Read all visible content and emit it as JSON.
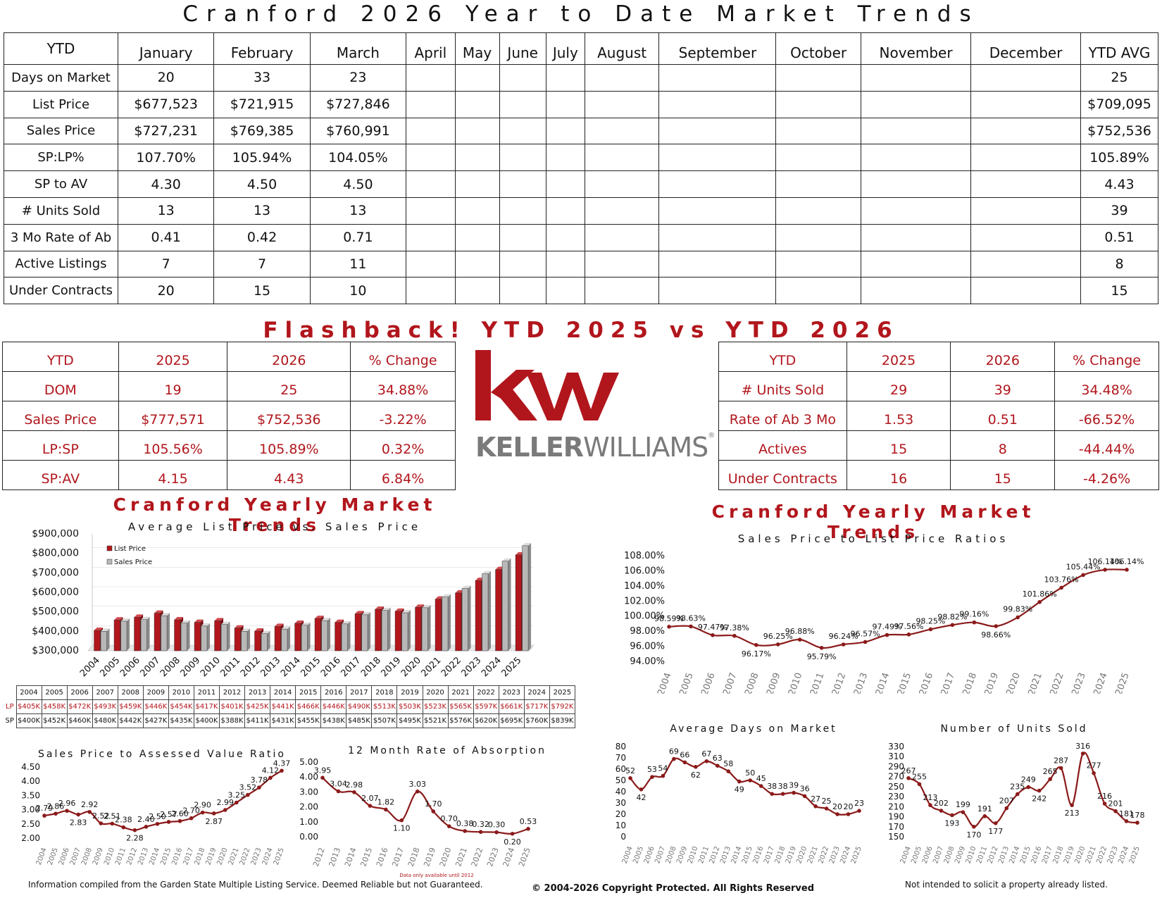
{
  "page": {
    "title": "Cranford 2026 Year to Date Market Trends",
    "flashback_title": "Flashback!  YTD 2025 vs YTD 2026",
    "yearly_title_left": "Cranford Yearly Market Trends",
    "yearly_title_right": "Cranford Yearly Market Trends"
  },
  "ytd_table": {
    "headers": [
      "YTD",
      "January",
      "February",
      "March",
      "April",
      "May",
      "June",
      "July",
      "August",
      "September",
      "October",
      "November",
      "December",
      "YTD AVG"
    ],
    "rows": [
      {
        "label": "Days on Market",
        "values": [
          "20",
          "33",
          "23"
        ],
        "avg": "25"
      },
      {
        "label": "List Price",
        "values": [
          "$677,523",
          "$721,915",
          "$727,846"
        ],
        "avg": "$709,095"
      },
      {
        "label": "Sales Price",
        "values": [
          "$727,231",
          "$769,385",
          "$760,991"
        ],
        "avg": "$752,536"
      },
      {
        "label": "SP:LP%",
        "values": [
          "107.70%",
          "105.94%",
          "104.05%"
        ],
        "avg": "105.89%"
      },
      {
        "label": "SP to AV",
        "values": [
          "4.30",
          "4.50",
          "4.50"
        ],
        "avg": "4.43"
      },
      {
        "label": "# Units Sold",
        "values": [
          "13",
          "13",
          "13"
        ],
        "avg": "39"
      },
      {
        "label": "3 Mo Rate of Ab",
        "values": [
          "0.41",
          "0.42",
          "0.71"
        ],
        "avg": "0.51"
      },
      {
        "label": "Active Listings",
        "values": [
          "7",
          "7",
          "11"
        ],
        "avg": "8"
      },
      {
        "label": "Under Contracts",
        "values": [
          "20",
          "15",
          "10"
        ],
        "avg": "15"
      }
    ]
  },
  "compare_left": {
    "headers": [
      "YTD",
      "2025",
      "2026",
      "% Change"
    ],
    "rows": [
      [
        "DOM",
        "19",
        "25",
        "34.88%"
      ],
      [
        "Sales Price",
        "$777,571",
        "$752,536",
        "-3.22%"
      ],
      [
        "LP:SP",
        "105.56%",
        "105.89%",
        "0.32%"
      ],
      [
        "SP:AV",
        "4.15",
        "4.43",
        "6.84%"
      ]
    ]
  },
  "compare_right": {
    "headers": [
      "YTD",
      "2025",
      "2026",
      "% Change"
    ],
    "rows": [
      [
        "# Units Sold",
        "29",
        "39",
        "34.48%"
      ],
      [
        "Rate of Ab 3 Mo",
        "1.53",
        "0.51",
        "-66.52%"
      ],
      [
        "Actives",
        "15",
        "8",
        "-44.44%"
      ],
      [
        "Under Contracts",
        "16",
        "15",
        "-4.26%"
      ]
    ]
  },
  "logo": {
    "monogram": "kw",
    "name_bold": "KELLER",
    "name_light": "WILLIAMS",
    "mark": "®",
    "color": "#b1161c",
    "gray": "#7a7a7a"
  },
  "colors": {
    "accent": "#b1161c",
    "line": "#8b1a1a",
    "bar_gray": "#b8b8b8"
  },
  "chart_data": [
    {
      "id": "list-vs-sales",
      "type": "bar",
      "title": "Average List Price vs. Sales Price",
      "categories": [
        "2004",
        "2005",
        "2006",
        "2007",
        "2008",
        "2009",
        "2010",
        "2011",
        "2012",
        "2013",
        "2014",
        "2015",
        "2016",
        "2017",
        "2018",
        "2019",
        "2020",
        "2021",
        "2022",
        "2023",
        "2024",
        "2025"
      ],
      "series": [
        {
          "name": "List Price",
          "values": [
            405,
            458,
            472,
            493,
            459,
            446,
            454,
            417,
            401,
            425,
            441,
            466,
            446,
            490,
            513,
            503,
            523,
            565,
            597,
            661,
            717,
            792
          ],
          "labels": [
            "$405K",
            "$458K",
            "$472K",
            "$493K",
            "$459K",
            "$446K",
            "$454K",
            "$417K",
            "$401K",
            "$425K",
            "$441K",
            "$466K",
            "$446K",
            "$490K",
            "$513K",
            "$503K",
            "$523K",
            "$565K",
            "$597K",
            "$661K",
            "$717K",
            "$792K"
          ]
        },
        {
          "name": "Sales Price",
          "values": [
            400,
            452,
            460,
            480,
            442,
            427,
            435,
            400,
            388,
            411,
            431,
            455,
            438,
            485,
            507,
            495,
            521,
            576,
            620,
            695,
            760,
            839
          ],
          "labels": [
            "$400K",
            "$452K",
            "$460K",
            "$480K",
            "$442K",
            "$427K",
            "$435K",
            "$400K",
            "$388K",
            "$411K",
            "$431K",
            "$455K",
            "$438K",
            "$485K",
            "$507K",
            "$495K",
            "$521K",
            "$576K",
            "$620K",
            "$695K",
            "$760K",
            "$839K"
          ]
        }
      ],
      "y_ticks": [
        "$900,000",
        "$800,000",
        "$700,000",
        "$600,000",
        "$500,000",
        "$400,000",
        "$300,000"
      ],
      "ylim": [
        300,
        900
      ],
      "table_row_labels": [
        "LP",
        "SP"
      ],
      "legend": "top-left"
    },
    {
      "id": "sp-lp-ratio",
      "type": "line",
      "title": "Sales Price to List Price Ratios",
      "x": [
        "2004",
        "2005",
        "2006",
        "2007",
        "2008",
        "2009",
        "2010",
        "2011",
        "2012",
        "2013",
        "2014",
        "2015",
        "2016",
        "2017",
        "2018",
        "2019",
        "2020",
        "2021",
        "2022",
        "2023",
        "2024",
        "2025"
      ],
      "values": [
        98.59,
        98.63,
        97.47,
        97.38,
        96.17,
        96.25,
        96.88,
        95.79,
        96.24,
        96.57,
        97.49,
        97.56,
        98.25,
        98.82,
        99.16,
        98.66,
        99.83,
        101.86,
        103.76,
        105.44,
        106.14,
        106.14
      ],
      "labels": [
        "98.59%",
        "98.63%",
        "97.47%",
        "97.38%",
        "96.17%",
        "96.25%",
        "96.88%",
        "95.79%",
        "96.24%",
        "96.57%",
        "97.49%",
        "97.56%",
        "98.25%",
        "98.82%",
        "99.16%",
        "98.66%",
        "99.83%",
        "101.86%",
        "103.76%",
        "105.44%",
        "106.14%",
        "106.14%"
      ],
      "y_ticks": [
        "108.00%",
        "106.00%",
        "104.00%",
        "102.00%",
        "100.00%",
        "98.00%",
        "96.00%",
        "94.00%"
      ],
      "ylim": [
        94,
        108
      ]
    },
    {
      "id": "sp-av-ratio",
      "type": "line",
      "title": "Sales Price to Assessed Value Ratio",
      "x": [
        "2004",
        "2005",
        "2006",
        "2007",
        "2008",
        "2009",
        "2010",
        "2011",
        "2012",
        "2013",
        "2014",
        "2015",
        "2016",
        "2017",
        "2018",
        "2019",
        "2020",
        "2021",
        "2022",
        "2023",
        "2024",
        "2025"
      ],
      "values": [
        2.79,
        2.86,
        2.96,
        2.83,
        2.92,
        2.52,
        2.51,
        2.38,
        2.28,
        2.4,
        2.5,
        2.57,
        2.6,
        2.7,
        2.9,
        2.87,
        2.99,
        3.25,
        3.52,
        3.78,
        4.12,
        4.37
      ],
      "labels": [
        "2.79",
        "2.86",
        "2.96",
        "2.83",
        "2.92",
        "2.52",
        "2.51",
        "2.38",
        "2.28",
        "2.40",
        "2.50",
        "2.57",
        "2.60",
        "2.70",
        "2.90",
        "2.87",
        "2.99",
        "3.25",
        "3.52",
        "3.78",
        "4.12",
        "4.37"
      ],
      "y_ticks": [
        "4.50",
        "4.00",
        "3.50",
        "3.00",
        "2.50",
        "2.00"
      ],
      "ylim": [
        2.0,
        4.5
      ]
    },
    {
      "id": "absorption",
      "type": "line",
      "title": "12 Month Rate of Absorption",
      "x": [
        "2012",
        "2013",
        "2014",
        "2015",
        "2016",
        "2017",
        "2018",
        "2019",
        "2020",
        "2021",
        "2022",
        "2023",
        "2024",
        "2025"
      ],
      "values": [
        3.95,
        3.04,
        2.98,
        2.07,
        1.82,
        1.1,
        3.03,
        1.7,
        0.7,
        0.38,
        0.32,
        0.3,
        0.2,
        0.53
      ],
      "labels": [
        "3.95",
        "3.04",
        "2.98",
        "2.07",
        "1.82",
        "1.10",
        "3.03",
        "1.70",
        "0.70",
        "0.38",
        "0.32",
        "0.30",
        "0.20",
        "0.53"
      ],
      "y_ticks": [
        "5.00",
        "4.00",
        "3.00",
        "2.00",
        "1.00",
        "0.00"
      ],
      "ylim": [
        0,
        5
      ],
      "note": "Data only available until 2012"
    },
    {
      "id": "days-on-market",
      "type": "line",
      "title": "Average Days on Market",
      "x": [
        "2004",
        "2005",
        "2006",
        "2007",
        "2008",
        "2009",
        "2010",
        "2011",
        "2012",
        "2013",
        "2014",
        "2015",
        "2016",
        "2017",
        "2018",
        "2019",
        "2020",
        "2021",
        "2022",
        "2023",
        "2024",
        "2025"
      ],
      "values": [
        52,
        42,
        53,
        54,
        69,
        66,
        62,
        67,
        63,
        58,
        49,
        50,
        45,
        38,
        38,
        39,
        36,
        27,
        25,
        20,
        20,
        23
      ],
      "labels": [
        "52",
        "42",
        "53",
        "54",
        "69",
        "66",
        "62",
        "67",
        "63",
        "58",
        "49",
        "50",
        "45",
        "38",
        "38",
        "39",
        "36",
        "27",
        "25",
        "20",
        "20",
        "23"
      ],
      "y_ticks": [
        "80",
        "70",
        "60",
        "50",
        "40",
        "30",
        "20",
        "10",
        "0"
      ],
      "ylim": [
        0,
        80
      ]
    },
    {
      "id": "units-sold",
      "type": "line",
      "title": "Number of Units Sold",
      "x": [
        "2004",
        "2005",
        "2006",
        "2007",
        "2008",
        "2009",
        "2010",
        "2011",
        "2012",
        "2013",
        "2014",
        "2015",
        "2016",
        "2017",
        "2018",
        "2019",
        "2020",
        "2021",
        "2022",
        "2023",
        "2024",
        "2025"
      ],
      "values": [
        267,
        255,
        213,
        202,
        193,
        199,
        170,
        191,
        177,
        207,
        235,
        249,
        242,
        265,
        287,
        213,
        316,
        277,
        216,
        201,
        181,
        178
      ],
      "labels": [
        "267",
        "255",
        "213",
        "202",
        "193",
        "199",
        "170",
        "191",
        "177",
        "207",
        "235",
        "249",
        "242",
        "265",
        "287",
        "213",
        "316",
        "277",
        "216",
        "201",
        "181",
        "178"
      ],
      "y_ticks": [
        "330",
        "310",
        "290",
        "270",
        "250",
        "230",
        "210",
        "190",
        "170",
        "150"
      ],
      "ylim": [
        150,
        330
      ]
    }
  ],
  "footer": {
    "left": "Information compiled from the Garden State Multiple Listing Service.  Deemed Reliable but not Guaranteed.",
    "center": "© 2004-2026 Copyright Protected.  All Rights Reserved",
    "right": "Not intended to solicit a property already listed."
  }
}
